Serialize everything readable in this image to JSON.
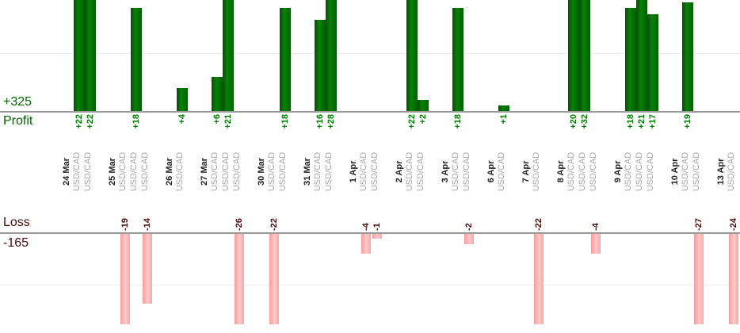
{
  "colors": {
    "profit_bar_left": "#0a4d0a",
    "profit_bar_mid": "#078207",
    "profit_bar_right": "#015e01",
    "loss_bar_left": "#f59c9c",
    "loss_bar_mid": "#ffc8c8",
    "loss_bar_right": "#f8a6a6",
    "profit_text": "#008000",
    "profit_axis_text": "#006600",
    "loss_text": "#470c0c",
    "date_text": "#222222",
    "instrument_text": "#a9a9a9",
    "axis_line": "#999999",
    "gridline": "#ededed"
  },
  "chart_data": {
    "type": "bar",
    "title": "",
    "orientation": "vertical",
    "legend": "none",
    "grid": "faint horizontal gridline in each panel",
    "profit_axis": {
      "label": "Profit",
      "total": "+325"
    },
    "loss_axis": {
      "label": "Loss",
      "total": "-165"
    },
    "groups": [
      {
        "date": "24 Mar",
        "trades": [
          {
            "instrument": "USD/CAD",
            "pnl": 22
          },
          {
            "instrument": "USD/CAD",
            "pnl": 22
          }
        ]
      },
      {
        "date": "25 Mar",
        "trades": [
          {
            "instrument": "USD/CAD",
            "pnl": -19
          },
          {
            "instrument": "USD/CAD",
            "pnl": 18
          },
          {
            "instrument": "USD/CAD",
            "pnl": -14
          }
        ]
      },
      {
        "date": "26 Mar",
        "trades": [
          {
            "instrument": "USD/CAD",
            "pnl": 4
          }
        ]
      },
      {
        "date": "27 Mar",
        "trades": [
          {
            "instrument": "USD/CAD",
            "pnl": 6
          },
          {
            "instrument": "USD/CAD",
            "pnl": 21
          },
          {
            "instrument": "USD/CAD",
            "pnl": -26
          }
        ]
      },
      {
        "date": "30 Mar",
        "trades": [
          {
            "instrument": "USD/CAD",
            "pnl": -22
          },
          {
            "instrument": "USD/CAD",
            "pnl": 18
          }
        ]
      },
      {
        "date": "31 Mar",
        "trades": [
          {
            "instrument": "USD/CAD",
            "pnl": 16
          },
          {
            "instrument": "USD/CAD",
            "pnl": 28
          }
        ]
      },
      {
        "date": "1 Apr",
        "trades": [
          {
            "instrument": "USD/CAD",
            "pnl": -4
          },
          {
            "instrument": "USD/CAD",
            "pnl": -1
          }
        ]
      },
      {
        "date": "2 Apr",
        "trades": [
          {
            "instrument": "USD/CAD",
            "pnl": 22
          },
          {
            "instrument": "USD/CAD",
            "pnl": 2
          }
        ]
      },
      {
        "date": "3 Apr",
        "trades": [
          {
            "instrument": "USD/CAD",
            "pnl": 18
          },
          {
            "instrument": "USD/CAD",
            "pnl": -2
          }
        ]
      },
      {
        "date": "6 Apr",
        "trades": [
          {
            "instrument": "USD/CAD",
            "pnl": 1
          }
        ]
      },
      {
        "date": "7 Apr",
        "trades": [
          {
            "instrument": "USD/CAD",
            "pnl": -22
          }
        ]
      },
      {
        "date": "8 Apr",
        "trades": [
          {
            "instrument": "USD/CAD",
            "pnl": 20
          },
          {
            "instrument": "USD/CAD",
            "pnl": 32
          },
          {
            "instrument": "USD/CAD",
            "pnl": -4
          }
        ]
      },
      {
        "date": "9 Apr",
        "trades": [
          {
            "instrument": "USD/CAD",
            "pnl": 18
          },
          {
            "instrument": "USD/CAD",
            "pnl": 21
          },
          {
            "instrument": "USD/CAD",
            "pnl": 17
          }
        ]
      },
      {
        "date": "10 Apr",
        "trades": [
          {
            "instrument": "USD/CAD",
            "pnl": 19
          },
          {
            "instrument": "USD/CAD",
            "pnl": -27
          }
        ]
      },
      {
        "date": "13 Apr",
        "trades": [
          {
            "instrument": "USD/CAD",
            "pnl": -24
          }
        ]
      }
    ]
  }
}
